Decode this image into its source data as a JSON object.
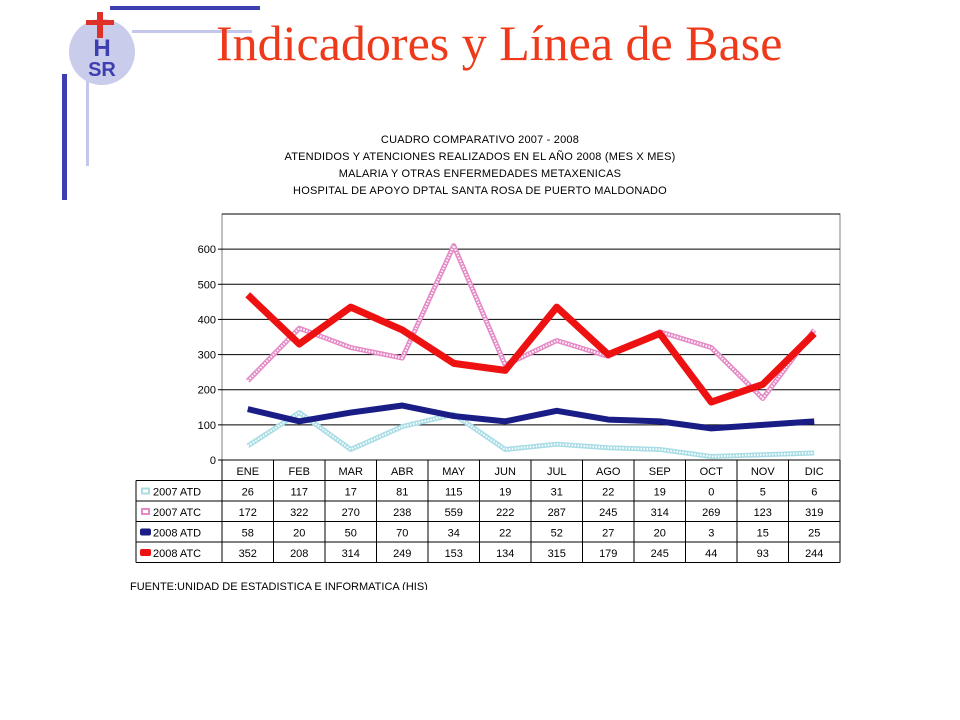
{
  "slide": {
    "title": "Indicadores y Línea de Base",
    "logo_text": "HSR"
  },
  "colors": {
    "title": "#ee3a1a",
    "deco_blue": "#3d3fb0",
    "deco_light": "#c4c7ea",
    "logo_cross": "#e0302a"
  },
  "chart_data": {
    "type": "line",
    "title_lines": [
      "CUADRO COMPARATIVO 2007 - 2008",
      "ATENDIDOS Y ATENCIONES  REALIZADOS EN  EL AÑO 2008 (MES X MES)",
      "MALARIA Y OTRAS ENFERMEDADES METAXENICAS",
      "HOSPITAL DE APOYO DPTAL SANTA ROSA DE PUERTO MALDONADO"
    ],
    "categories": [
      "ENE",
      "FEB",
      "MAR",
      "ABR",
      "MAY",
      "JUN",
      "JUL",
      "AGO",
      "SEP",
      "OCT",
      "NOV",
      "DIC"
    ],
    "y_ticks": [
      "0",
      "100",
      "200",
      "300",
      "400",
      "500",
      "600"
    ],
    "ylim": [
      0,
      700
    ],
    "grid": true,
    "legend_placement": "table-left",
    "series": [
      {
        "name": "2007 ATD",
        "color": "#a9dde6",
        "style": "dotted",
        "values": [
          26,
          117,
          17,
          81,
          115,
          19,
          31,
          22,
          19,
          0,
          5,
          6
        ],
        "plotted": [
          40,
          135,
          30,
          95,
          130,
          30,
          45,
          35,
          30,
          10,
          15,
          20
        ]
      },
      {
        "name": "2007 ATC",
        "color": "#e58ac6",
        "style": "dotted",
        "values": [
          172,
          322,
          270,
          238,
          559,
          222,
          287,
          245,
          314,
          269,
          123,
          319
        ],
        "plotted": [
          225,
          375,
          320,
          290,
          610,
          270,
          340,
          295,
          365,
          320,
          175,
          370
        ]
      },
      {
        "name": "2008 ATD",
        "color": "#1a1d86",
        "style": "solid",
        "values": [
          58,
          20,
          50,
          70,
          34,
          22,
          52,
          27,
          20,
          3,
          15,
          25
        ],
        "plotted": [
          145,
          110,
          135,
          155,
          125,
          110,
          140,
          115,
          110,
          90,
          100,
          110
        ]
      },
      {
        "name": "2008 ATC",
        "color": "#ee1111",
        "style": "solid",
        "values": [
          352,
          208,
          314,
          249,
          153,
          134,
          315,
          179,
          245,
          44,
          93,
          244
        ],
        "plotted": [
          470,
          330,
          435,
          370,
          275,
          255,
          435,
          300,
          360,
          165,
          215,
          360
        ]
      }
    ],
    "source": "FUENTE:UNIDAD DE ESTADISTICA E INFORMATICA (HIS)"
  }
}
